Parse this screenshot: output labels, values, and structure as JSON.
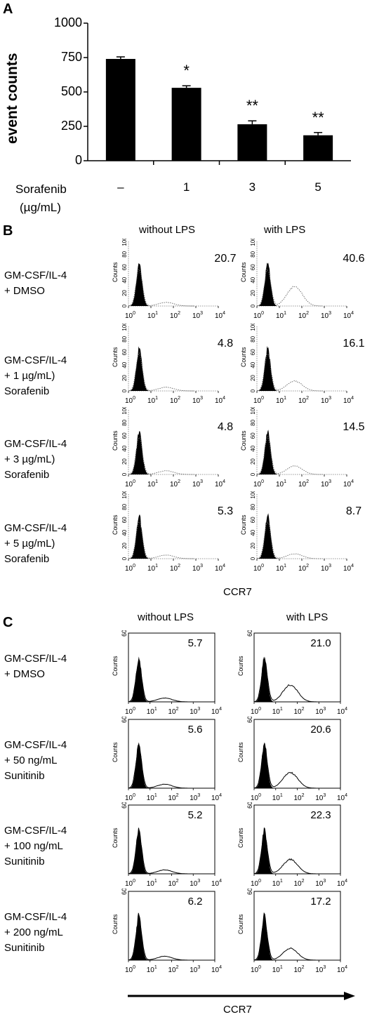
{
  "panels": {
    "a": "A",
    "b": "B",
    "c": "C"
  },
  "chart_data": [
    {
      "type": "bar",
      "panel": "A",
      "ylabel": "event counts",
      "xlabel_lines": [
        "Sorafenib",
        "(µg/mL)"
      ],
      "categories": [
        "–",
        "1",
        "3",
        "5"
      ],
      "values": [
        740,
        530,
        265,
        185
      ],
      "errors": [
        15,
        15,
        25,
        20
      ],
      "significance": [
        "",
        "*",
        "**",
        "**"
      ],
      "yticks": [
        0,
        250,
        500,
        750,
        1000
      ],
      "ylim": [
        0,
        1000
      ]
    },
    {
      "type": "histogram-grid",
      "panel": "B",
      "columns": [
        "without LPS",
        "with LPS"
      ],
      "rows": [
        {
          "label": "GM-CSF/IL-4\n+ DMSO",
          "values": [
            "20.7",
            "40.6"
          ]
        },
        {
          "label": "GM-CSF/IL-4\n+ 1 µg/mL)\nSorafenib",
          "values": [
            "4.8",
            "16.1"
          ]
        },
        {
          "label": "GM-CSF/IL-4\n+ 3 µg/mL)\nSorafenib",
          "values": [
            "4.8",
            "14.5"
          ]
        },
        {
          "label": "GM-CSF/IL-4\n+ 5 µg/mL)\nSorafenib",
          "values": [
            "5.3",
            "8.7"
          ]
        }
      ],
      "yaxis_label": "Counts",
      "yticks": [
        "0",
        "20",
        "40",
        "60",
        "80",
        "100"
      ],
      "xaxis": "CCR7"
    },
    {
      "type": "histogram-grid",
      "panel": "C",
      "columns": [
        "without LPS",
        "with LPS"
      ],
      "rows": [
        {
          "label": "GM-CSF/IL-4\n+ DMSO",
          "values": [
            "5.7",
            "21.0"
          ]
        },
        {
          "label": "GM-CSF/IL-4\n+ 50 ng/mL\nSunitinib",
          "values": [
            "5.6",
            "20.6"
          ]
        },
        {
          "label": "GM-CSF/IL-4\n+ 100 ng/mL\nSunitinib",
          "values": [
            "5.2",
            "22.3"
          ]
        },
        {
          "label": "GM-CSF/IL-4\n+ 200 ng/mL\nSunitinib",
          "values": [
            "6.2",
            "17.2"
          ]
        }
      ],
      "yaxis_label": "Counts",
      "yticks": [
        "0",
        "60"
      ],
      "xaxis": "CCR7"
    }
  ]
}
